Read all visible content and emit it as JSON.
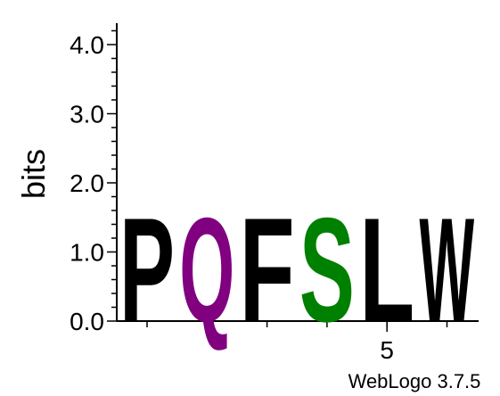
{
  "chart_data": {
    "type": "sequence-logo",
    "ylabel": "bits",
    "ylim": [
      0,
      4.32
    ],
    "y_ticks": [
      "0.0",
      "1.0",
      "2.0",
      "3.0",
      "4.0"
    ],
    "x_tick_labels": [
      {
        "position": 5,
        "label": "5"
      }
    ],
    "positions": [
      {
        "index": 1,
        "letter": "P",
        "bits": 1.78,
        "color": "#000000"
      },
      {
        "index": 2,
        "letter": "Q",
        "bits": 1.78,
        "color": "#800080"
      },
      {
        "index": 3,
        "letter": "F",
        "bits": 1.78,
        "color": "#000000"
      },
      {
        "index": 4,
        "letter": "S",
        "bits": 1.78,
        "color": "#008000"
      },
      {
        "index": 5,
        "letter": "L",
        "bits": 1.78,
        "color": "#000000"
      },
      {
        "index": 6,
        "letter": "W",
        "bits": 1.78,
        "color": "#000000"
      }
    ],
    "credit": "WebLogo 3.7.5"
  }
}
